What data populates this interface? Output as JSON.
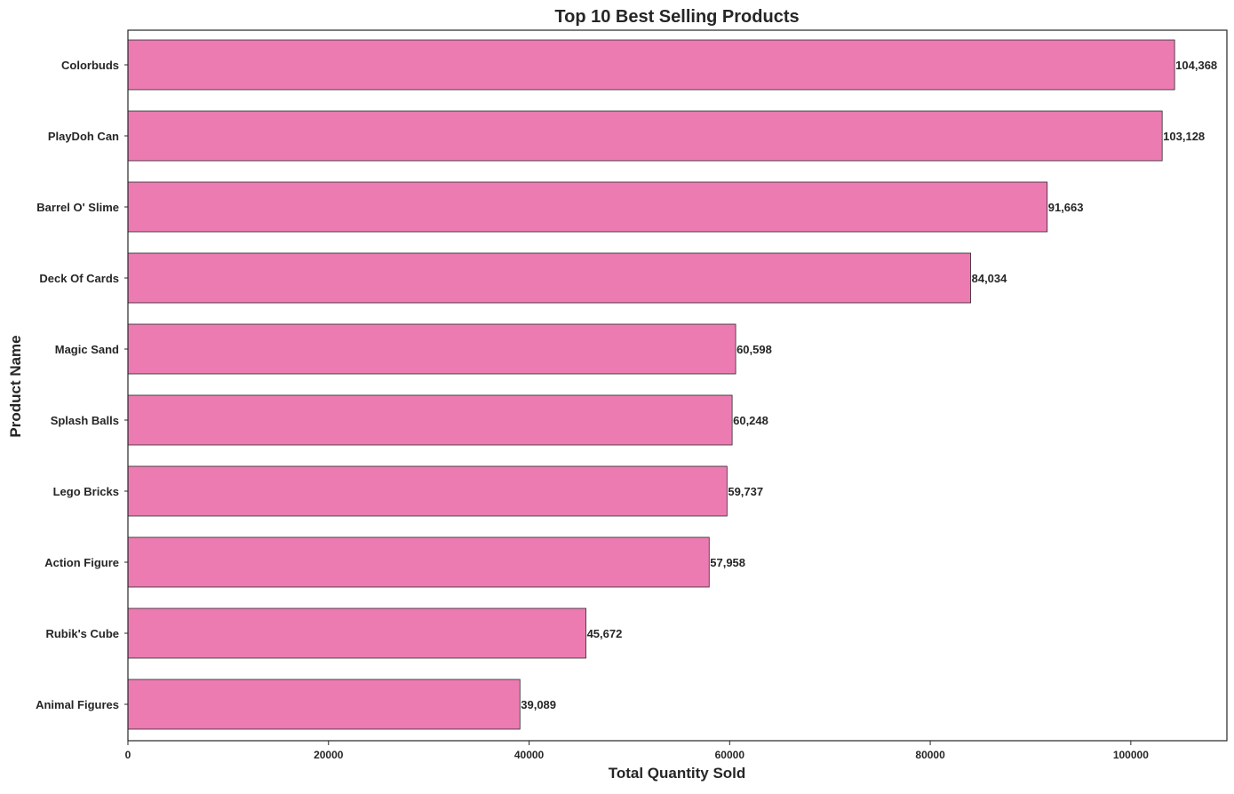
{
  "chart_data": {
    "type": "bar",
    "orientation": "horizontal",
    "title": "Top 10 Best Selling Products",
    "xlabel": "Total Quantity Sold",
    "ylabel": "Product Name",
    "categories": [
      "Colorbuds",
      "PlayDoh Can",
      "Barrel O' Slime",
      "Deck Of Cards",
      "Magic Sand",
      "Splash Balls",
      "Lego Bricks",
      "Action Figure",
      "Rubik's Cube",
      "Animal Figures"
    ],
    "values": [
      104368,
      103128,
      91663,
      84034,
      60598,
      60248,
      59737,
      57958,
      45672,
      39089
    ],
    "value_labels": [
      "104,368",
      "103,128",
      "91,663",
      "84,034",
      "60,598",
      "60,248",
      "59,737",
      "57,958",
      "45,672",
      "39,089"
    ],
    "xlim": [
      0,
      109580
    ],
    "xticks": [
      0,
      20000,
      40000,
      60000,
      80000,
      100000
    ],
    "xtick_labels": [
      "0",
      "20000",
      "40000",
      "60000",
      "80000",
      "100000"
    ],
    "grid": false,
    "legend": "none",
    "colors": {
      "bar_fill": "#ec7bb2",
      "bar_edge": "#2b2b2b",
      "axis": "#262626",
      "text": "#262626"
    }
  }
}
